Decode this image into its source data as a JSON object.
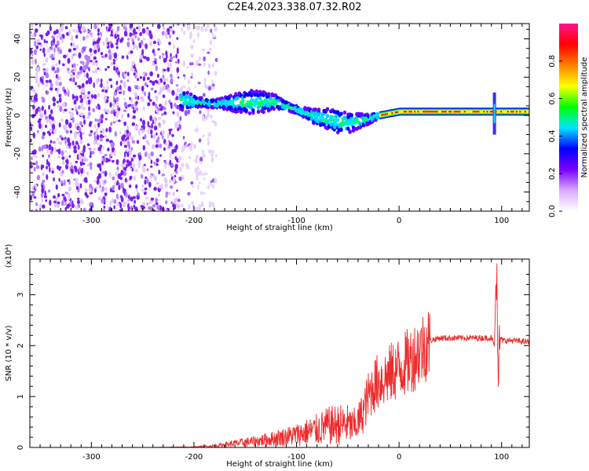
{
  "figure": {
    "title": "C2E4.2023.338.07.32.R02"
  },
  "chart_data": [
    {
      "type": "heatmap",
      "xlabel": "Height of straight line (km)",
      "ylabel": "Frequency (Hz)",
      "xlim": [
        -360,
        127
      ],
      "ylim": [
        -50,
        48
      ],
      "x_ticks": [
        -300,
        -200,
        -100,
        0,
        100
      ],
      "y_ticks": [
        -40,
        -20,
        0,
        20,
        40
      ],
      "colorbar": {
        "label": "Normalized spectral amplitude",
        "range": [
          0,
          1
        ],
        "ticks": [
          "0.0",
          "0.2",
          "0.4",
          "0.6",
          "0.8"
        ],
        "colors": [
          "#ffffff",
          "#d9a9ff",
          "#7a00ff",
          "#0000ff",
          "#00e5ff",
          "#00ff00",
          "#ffff00",
          "#ff8000",
          "#ff0000",
          "#ff1493"
        ]
      },
      "ridge": {
        "x": [
          -213,
          -180,
          -150,
          -120,
          -100,
          -80,
          -60,
          -50,
          -40,
          -30,
          -20,
          0,
          127
        ],
        "freq": [
          8,
          6,
          7,
          7,
          3,
          -1,
          -3,
          -4,
          -3,
          -2,
          0,
          2,
          2
        ]
      },
      "noise_region": {
        "x": [
          -360,
          -178
        ]
      },
      "spike": {
        "x": 93
      }
    },
    {
      "type": "line",
      "xlabel": "Height of straight line (km)",
      "ylabel": "SNR (10 * v/v)",
      "y_multiplier": "(x10⁴)",
      "xlim": [
        -360,
        127
      ],
      "ylim": [
        0,
        3.7
      ],
      "x_ticks": [
        -300,
        -200,
        -100,
        0,
        100
      ],
      "y_ticks": [
        0,
        1,
        2,
        3
      ],
      "color": "#ee2a2a",
      "series": [
        {
          "x": [
            -360,
            -300,
            -250,
            -200,
            -180,
            -160,
            -140,
            -120,
            -100,
            -90,
            -80,
            -70,
            -60,
            -50,
            -45,
            -40,
            -35,
            -30,
            -25,
            -20,
            -15,
            -10,
            -5,
            0,
            10,
            20,
            30,
            40,
            60,
            80,
            90,
            93,
            95,
            97,
            99,
            100,
            110,
            127
          ],
          "y": [
            0.0,
            0.0,
            0.0,
            0.01,
            0.03,
            0.08,
            0.12,
            0.18,
            0.25,
            0.3,
            0.35,
            0.42,
            0.45,
            0.45,
            0.4,
            0.5,
            0.7,
            1.0,
            1.2,
            1.3,
            1.35,
            1.42,
            1.5,
            1.55,
            1.7,
            1.9,
            2.1,
            2.15,
            2.15,
            2.15,
            2.15,
            2.0,
            3.65,
            1.5,
            2.2,
            2.1,
            2.1,
            2.07
          ]
        }
      ]
    }
  ]
}
